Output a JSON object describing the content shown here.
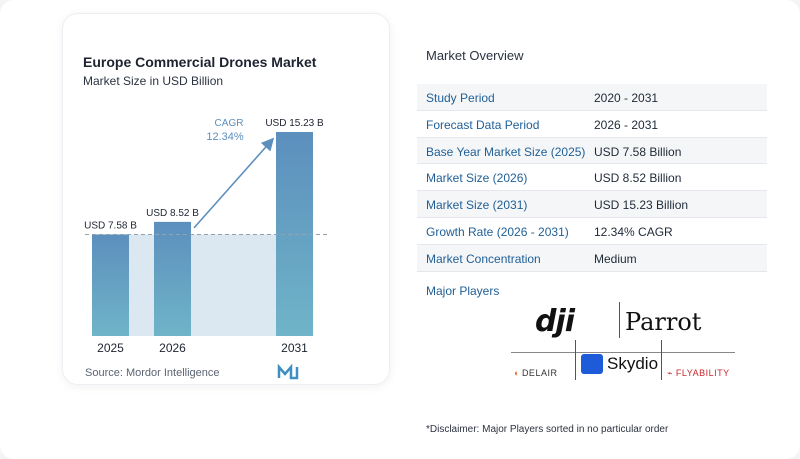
{
  "chart_data": {
    "type": "bar",
    "title": "Europe Commercial Drones Market",
    "subtitle": "Market Size in USD Billion",
    "categories": [
      "2025",
      "2026",
      "2031"
    ],
    "values": [
      7.58,
      8.52,
      15.23
    ],
    "value_labels": [
      "USD 7.58 B",
      "USD 8.52 B",
      "USD 15.23 B"
    ],
    "cagr_label": "CAGR",
    "cagr_value": "12.34%",
    "ylim": [
      0,
      16
    ],
    "colors": {
      "bar_top": "#5c8fbd",
      "bar_bottom": "#6fb4c8",
      "shade": "#dbe8f2",
      "arrow": "#5c8fbd",
      "dashed": "#8fa3b5"
    }
  },
  "source": "Source:  Mordor Intelligence",
  "overview": {
    "title": "Market Overview",
    "rows": [
      {
        "label": "Study Period",
        "value": "2020 - 2031"
      },
      {
        "label": "Forecast Data Period",
        "value": "2026 - 2031"
      },
      {
        "label": "Base Year Market Size (2025)",
        "value": "USD 7.58 Billion"
      },
      {
        "label": "Market Size (2026)",
        "value": "USD 8.52 Billion"
      },
      {
        "label": "Market Size (2031)",
        "value": "USD 15.23 Billion"
      },
      {
        "label": "Growth Rate (2026 - 2031)",
        "value": "12.34% CAGR"
      },
      {
        "label": "Market Concentration",
        "value": "Medium"
      }
    ]
  },
  "players": {
    "label": "Major Players",
    "logos": [
      "dji",
      "Parrot",
      "Skydio",
      "DELAIR",
      "FLYABILITY"
    ]
  },
  "disclaimer": "*Disclaimer: Major Players sorted in no particular order"
}
